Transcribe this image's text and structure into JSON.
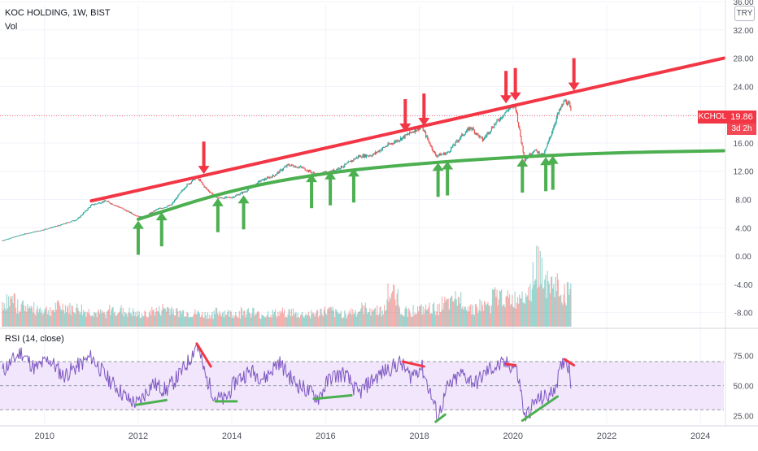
{
  "legend": {
    "symbol": "KOC HOLDING, 1W, BIST",
    "volume": "Vol",
    "rsi": "RSI (14, close)"
  },
  "currency_button": "TRY",
  "last_price": {
    "ticker": "KCHOL",
    "value": "19.86",
    "countdown": "3d 2h"
  },
  "colors": {
    "up": "#26a69a",
    "down": "#ef5350",
    "resistance": "#f23645",
    "support": "#4caf50",
    "rsi_line": "#7e57c2",
    "rsi_band": "#f1e6fc",
    "grid": "#f0f3fa"
  },
  "chart_data": [
    {
      "type": "candlestick",
      "title": "KOC HOLDING, 1W, BIST",
      "y_ticks": [
        "36.00",
        "32.00",
        "28.00",
        "24.00",
        "20.00",
        "16.00",
        "12.00",
        "8.00",
        "4.00",
        "0.00",
        "-4.00",
        "-8.00"
      ],
      "ylim": [
        -10,
        36
      ],
      "x_ticks": [
        "2010",
        "2012",
        "2014",
        "2016",
        "2018",
        "2020",
        "2022",
        "2024"
      ],
      "xlim": [
        2009.05,
        2024.5
      ],
      "grid": true,
      "series": [
        {
          "name": "price",
          "points": [
            [
              2009.1,
              2.2
            ],
            [
              2009.5,
              3.0
            ],
            [
              2009.9,
              3.6
            ],
            [
              2010.3,
              4.3
            ],
            [
              2010.7,
              5.2
            ],
            [
              2011.0,
              7.2
            ],
            [
              2011.3,
              7.8
            ],
            [
              2011.6,
              6.9
            ],
            [
              2011.9,
              5.9
            ],
            [
              2012.1,
              5.4
            ],
            [
              2012.4,
              6.6
            ],
            [
              2012.7,
              7.2
            ],
            [
              2013.0,
              9.8
            ],
            [
              2013.25,
              11.2
            ],
            [
              2013.45,
              9.5
            ],
            [
              2013.7,
              8.2
            ],
            [
              2014.0,
              8.3
            ],
            [
              2014.3,
              9.2
            ],
            [
              2014.6,
              10.6
            ],
            [
              2014.9,
              11.4
            ],
            [
              2015.2,
              12.9
            ],
            [
              2015.5,
              12.5
            ],
            [
              2015.8,
              11.5
            ],
            [
              2016.1,
              11.9
            ],
            [
              2016.4,
              12.8
            ],
            [
              2016.7,
              14.1
            ],
            [
              2017.0,
              14.3
            ],
            [
              2017.3,
              15.6
            ],
            [
              2017.6,
              16.6
            ],
            [
              2017.9,
              17.8
            ],
            [
              2018.05,
              18.3
            ],
            [
              2018.2,
              16.2
            ],
            [
              2018.35,
              14.2
            ],
            [
              2018.6,
              14.6
            ],
            [
              2018.9,
              17.0
            ],
            [
              2019.1,
              18.2
            ],
            [
              2019.35,
              16.4
            ],
            [
              2019.6,
              18.6
            ],
            [
              2019.9,
              20.8
            ],
            [
              2020.05,
              21.3
            ],
            [
              2020.15,
              17.2
            ],
            [
              2020.25,
              13.6
            ],
            [
              2020.45,
              15.0
            ],
            [
              2020.65,
              14.2
            ],
            [
              2020.8,
              17.0
            ],
            [
              2020.95,
              20.0
            ],
            [
              2021.1,
              22.0
            ],
            [
              2021.2,
              21.4
            ],
            [
              2021.25,
              19.86
            ]
          ]
        },
        {
          "name": "Vol",
          "relative_values": [
            0.42,
            0.35,
            0.3,
            0.28,
            0.33,
            0.3,
            0.25,
            0.22,
            0.28,
            0.24,
            0.2,
            0.26,
            0.3,
            0.24,
            0.22,
            0.2,
            0.24,
            0.22,
            0.25,
            0.2,
            0.22,
            0.24,
            0.2,
            0.22,
            0.26,
            0.22,
            0.25,
            0.3,
            0.28,
            0.55,
            0.26,
            0.28,
            0.3,
            0.38,
            0.45,
            0.32,
            0.35,
            0.5,
            0.45,
            0.6,
            1.0,
            0.7,
            0.55
          ]
        }
      ],
      "annotations": {
        "resistance_line": [
          [
            2011.0,
            7.8
          ],
          [
            2024.5,
            28.0
          ]
        ],
        "support_curve": [
          [
            2012.0,
            5.2
          ],
          [
            2014.0,
            9.4
          ],
          [
            2016.0,
            11.8
          ],
          [
            2018.0,
            13.1
          ],
          [
            2020.0,
            14.0
          ],
          [
            2022.0,
            14.6
          ],
          [
            2024.5,
            14.9
          ]
        ],
        "red_arrows_down": [
          [
            2013.4,
            11.6
          ],
          [
            2017.7,
            17.6
          ],
          [
            2018.1,
            18.4
          ],
          [
            2019.85,
            21.6
          ],
          [
            2020.05,
            22.0
          ],
          [
            2021.3,
            23.4
          ]
        ],
        "green_arrows_up": [
          [
            2012.0,
            5.0
          ],
          [
            2012.5,
            6.2
          ],
          [
            2013.7,
            8.2
          ],
          [
            2014.25,
            8.6
          ],
          [
            2015.7,
            11.6
          ],
          [
            2016.1,
            12.0
          ],
          [
            2016.6,
            12.4
          ],
          [
            2018.4,
            13.2
          ],
          [
            2018.6,
            13.4
          ],
          [
            2020.2,
            13.8
          ],
          [
            2020.7,
            14.0
          ],
          [
            2020.85,
            14.2
          ]
        ]
      }
    },
    {
      "type": "line",
      "title": "RSI (14, close)",
      "y_ticks": [
        "75.00",
        "50.00",
        "25.00"
      ],
      "ylim": [
        18,
        95
      ],
      "band": [
        30,
        70
      ],
      "xlim": [
        2009.05,
        2024.5
      ],
      "series": [
        {
          "name": "RSI (14, close)",
          "points": [
            [
              2009.1,
              62
            ],
            [
              2009.3,
              70
            ],
            [
              2009.5,
              78
            ],
            [
              2009.8,
              64
            ],
            [
              2010.1,
              72
            ],
            [
              2010.4,
              58
            ],
            [
              2010.7,
              66
            ],
            [
              2011.0,
              74
            ],
            [
              2011.3,
              58
            ],
            [
              2011.6,
              46
            ],
            [
              2011.8,
              38
            ],
            [
              2012.0,
              35
            ],
            [
              2012.3,
              52
            ],
            [
              2012.6,
              46
            ],
            [
              2012.9,
              60
            ],
            [
              2013.1,
              72
            ],
            [
              2013.25,
              85
            ],
            [
              2013.45,
              56
            ],
            [
              2013.65,
              40
            ],
            [
              2013.85,
              38
            ],
            [
              2014.1,
              55
            ],
            [
              2014.4,
              62
            ],
            [
              2014.7,
              56
            ],
            [
              2015.0,
              70
            ],
            [
              2015.3,
              54
            ],
            [
              2015.6,
              46
            ],
            [
              2015.85,
              40
            ],
            [
              2016.1,
              57
            ],
            [
              2016.4,
              60
            ],
            [
              2016.7,
              43
            ],
            [
              2017.0,
              55
            ],
            [
              2017.3,
              63
            ],
            [
              2017.6,
              69
            ],
            [
              2017.8,
              58
            ],
            [
              2018.05,
              66
            ],
            [
              2018.25,
              42
            ],
            [
              2018.4,
              24
            ],
            [
              2018.6,
              48
            ],
            [
              2018.9,
              60
            ],
            [
              2019.2,
              52
            ],
            [
              2019.5,
              64
            ],
            [
              2019.85,
              68
            ],
            [
              2020.05,
              66
            ],
            [
              2020.15,
              50
            ],
            [
              2020.25,
              23
            ],
            [
              2020.5,
              38
            ],
            [
              2020.8,
              42
            ],
            [
              2020.95,
              55
            ],
            [
              2021.1,
              73
            ],
            [
              2021.2,
              65
            ],
            [
              2021.25,
              48
            ]
          ]
        }
      ],
      "annotations": {
        "divergence_lines_red": [
          [
            [
              2013.25,
              85
            ],
            [
              2013.55,
              66
            ]
          ],
          [
            [
              2017.65,
              70
            ],
            [
              2018.1,
              66
            ]
          ],
          [
            [
              2019.85,
              68
            ],
            [
              2020.05,
              67
            ]
          ],
          [
            [
              2021.1,
              72
            ],
            [
              2021.3,
              67
            ]
          ]
        ],
        "divergence_lines_green": [
          [
            [
              2011.95,
              34
            ],
            [
              2012.6,
              38
            ]
          ],
          [
            [
              2013.65,
              37
            ],
            [
              2014.1,
              37
            ]
          ],
          [
            [
              2015.75,
              39
            ],
            [
              2016.55,
              42
            ]
          ],
          [
            [
              2018.35,
              20
            ],
            [
              2018.55,
              26
            ]
          ],
          [
            [
              2020.2,
              21
            ],
            [
              2020.95,
              41
            ]
          ]
        ]
      }
    }
  ]
}
